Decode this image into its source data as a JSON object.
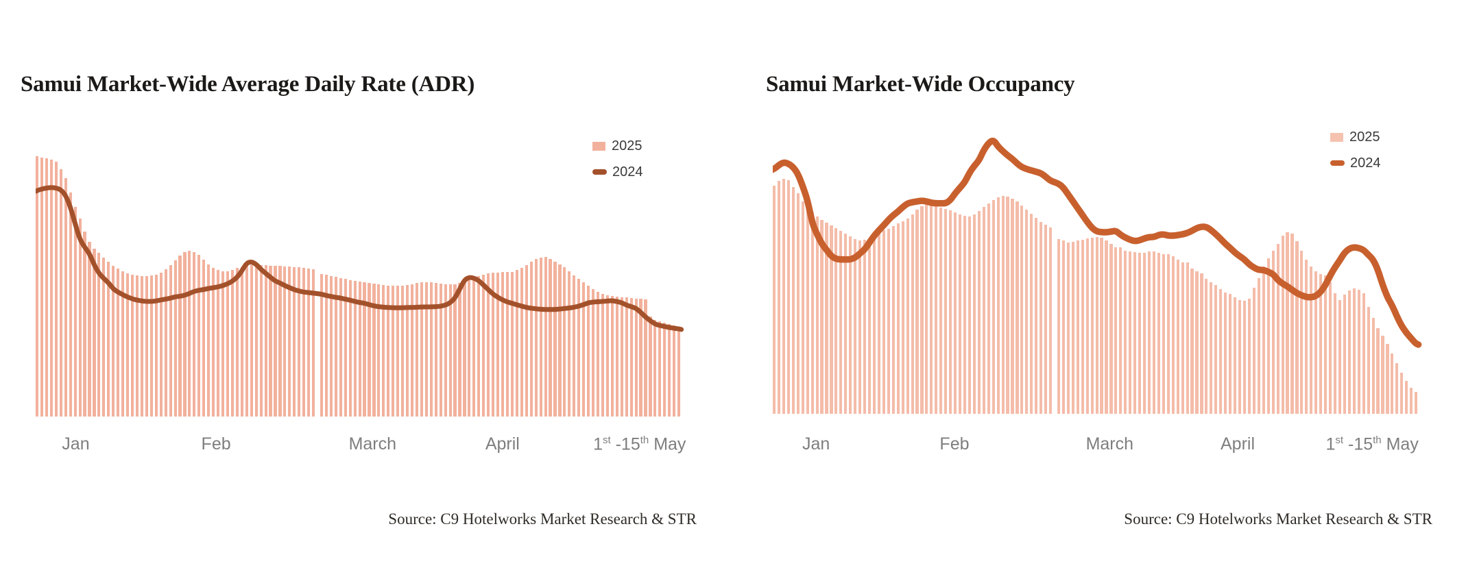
{
  "page": {
    "background": "#ffffff"
  },
  "source_label": "Source: C9 Hotelworks Market Research & STR",
  "charts": [
    {
      "id": "adr",
      "title": "Samui Market-Wide Average Daily Rate (ADR)",
      "legend": [
        {
          "label": "2025",
          "swatch": "bar",
          "color": "#F2B19C"
        },
        {
          "label": "2024",
          "swatch": "line",
          "color": "#A3512B"
        }
      ],
      "x_axis": {
        "labels": [
          {
            "text": "Jan"
          },
          {
            "text": "Feb"
          },
          {
            "text": "March"
          },
          {
            "text": "April"
          },
          {
            "text": "1st -15th May",
            "parts": {
              "a": "1",
              "sup_a": "st",
              "b": " -15",
              "sup_b": "th",
              "c": " May"
            }
          }
        ]
      },
      "source": "Source: C9 Hotelworks Market Research & STR",
      "chart_data": {
        "type": "bar+line",
        "x_unit": "daily, Jan 1 - May 15 (135 days)",
        "categories_months": [
          "Jan",
          "Feb",
          "March",
          "April",
          "1st-15th May"
        ],
        "ylabel": "",
        "value_scale": "relative height 0-100 (no y-axis shown in figure)",
        "month_gap_after_day_index": 58,
        "legend_position": "top-right",
        "grid": false,
        "series": [
          {
            "name": "2025",
            "type": "bar",
            "color": "#F2B19C",
            "values": [
              100,
              99.6,
              99.2,
              98.7,
              97.9,
              95,
              91.5,
              86,
              80.5,
              76,
              71,
              67,
              64.5,
              62.8,
              61,
              59.5,
              58,
              56.8,
              55.8,
              55,
              54.4,
              54.1,
              54,
              54,
              54.2,
              54.6,
              55.4,
              56.6,
              58.2,
              60,
              61.8,
              63.2,
              63.6,
              63.2,
              62,
              60.3,
              58.5,
              57.2,
              56.3,
              55.8,
              55.9,
              56.4,
              57,
              57.5,
              57.9,
              58.1,
              58.2,
              58.2,
              58.1,
              58,
              57.9,
              57.8,
              57.7,
              57.6,
              57.5,
              57.4,
              57.2,
              56.9,
              56.5,
              54.7,
              54.4,
              54,
              53.6,
              53.2,
              52.8,
              52.4,
              52.1,
              51.8,
              51.5,
              51.2,
              51,
              50.8,
              50.6,
              50.4,
              50.3,
              50.2,
              50.3,
              50.5,
              50.8,
              51.2,
              51.5,
              51.6,
              51.5,
              51.3,
              51.1,
              50.9,
              50.8,
              50.9,
              51.2,
              51.8,
              52.5,
              53.2,
              53.9,
              54.5,
              54.9,
              55.2,
              55.4,
              55.5,
              55.5,
              55.6,
              56.2,
              57.1,
              58.3,
              59.5,
              60.5,
              61.1,
              61.3,
              60.6,
              59.5,
              58.4,
              57.3,
              55.8,
              54.2,
              53,
              51.6,
              50.3,
              48.9,
              47.8,
              47.1,
              46.5,
              46.2,
              46,
              45.9,
              45.7,
              45.6,
              45.4,
              45.2,
              45,
              38.5,
              37.1,
              36.5,
              36,
              35.5,
              35,
              34.5
            ]
          },
          {
            "name": "2024",
            "type": "line",
            "color": "#A3512B",
            "values": [
              86.8,
              87.4,
              87.8,
              88,
              87.8,
              87.1,
              85,
              80.5,
              74,
              68,
              65,
              62.6,
              58.2,
              55,
              53,
              51.4,
              49,
              47.8,
              46.8,
              45.9,
              45.2,
              44.7,
              44.4,
              44.2,
              44.2,
              44.4,
              44.8,
              45.1,
              45.5,
              46,
              46.2,
              46.6,
              47.3,
              48.1,
              48.5,
              48.8,
              49.2,
              49.5,
              49.8,
              50.3,
              51,
              52,
              53.5,
              56,
              59,
              59.5,
              58.5,
              56.5,
              55,
              53.5,
              52,
              51.3,
              50.3,
              49.5,
              48.7,
              48.2,
              47.8,
              47.6,
              47.4,
              47,
              46.5,
              46.1,
              45.8,
              45.5,
              45.1,
              44.7,
              44.2,
              43.8,
              43.5,
              43,
              42.5,
              42.2,
              42,
              41.9,
              41.8,
              41.8,
              41.8,
              41.9,
              41.9,
              42,
              42.1,
              42.1,
              42.1,
              42.2,
              42.4,
              42.8,
              43.7,
              45.5,
              49,
              52.5,
              53.5,
              53.2,
              52.2,
              50.5,
              48.7,
              47,
              45.8,
              44.8,
              44,
              43.5,
              42.9,
              42.4,
              41.9,
              41.6,
              41.4,
              41.2,
              41.1,
              41.1,
              41.1,
              41.3,
              41.5,
              41.7,
              42,
              42.4,
              43,
              43.7,
              44,
              44.1,
              44.2,
              44.4,
              44.5,
              44.2,
              43.7,
              42.8,
              42.2,
              41.6,
              40,
              38.2,
              36.8,
              35.5,
              35,
              34.6,
              34.2,
              33.9,
              33.7
            ]
          }
        ]
      }
    },
    {
      "id": "occupancy",
      "title": "Samui Market-Wide Occupancy",
      "legend": [
        {
          "label": "2025",
          "swatch": "bar",
          "color": "#F5C2B0"
        },
        {
          "label": "2024",
          "swatch": "line",
          "color": "#C8602E"
        }
      ],
      "x_axis": {
        "labels": [
          {
            "text": "Jan"
          },
          {
            "text": "Feb"
          },
          {
            "text": "March"
          },
          {
            "text": "April"
          },
          {
            "text": "1st -15th May",
            "parts": {
              "a": "1",
              "sup_a": "st",
              "b": " -15",
              "sup_b": "th",
              "c": " May"
            }
          }
        ]
      },
      "source": "Source: C9 Hotelworks Market Research & STR",
      "chart_data": {
        "type": "bar+line",
        "x_unit": "daily, Jan 1 - May 15 (135 days)",
        "categories_months": [
          "Jan",
          "Feb",
          "March",
          "April",
          "1st-15th May"
        ],
        "ylabel": "",
        "value_scale": "relative height 0-100 (no y-axis shown in figure; plausibly occupancy %)",
        "month_gap_after_day_index": 58,
        "legend_position": "top-right",
        "grid": false,
        "series": [
          {
            "name": "2025",
            "type": "bar",
            "color": "#F4BCA9",
            "values": [
              83.3,
              85,
              85.8,
              85.2,
              82.8,
              80.5,
              77.5,
              75.8,
              73.5,
              72,
              70.8,
              69.8,
              68.8,
              67.8,
              66.8,
              65.8,
              64.8,
              63.8,
              63.2,
              63.4,
              63.8,
              64.8,
              66,
              67,
              67.5,
              68.5,
              69.5,
              70.3,
              71.3,
              72.8,
              74.5,
              75.8,
              76.8,
              76.3,
              75.8,
              75.2,
              74.8,
              74.3,
              73.5,
              72.8,
              72.2,
              72,
              72.8,
              74,
              75.5,
              76.8,
              78,
              79,
              79.5,
              79.3,
              78.5,
              77.5,
              76,
              74.5,
              73,
              71.5,
              70,
              69,
              68,
              63.8,
              63.2,
              62.5,
              62.8,
              63.2,
              63.6,
              64,
              64.3,
              64.5,
              64.2,
              63.3,
              62,
              60.8,
              60.8,
              59.5,
              59.3,
              59,
              58.8,
              58.8,
              59.3,
              59.3,
              58.8,
              58.3,
              58.3,
              57.5,
              56.3,
              55.3,
              55.3,
              53,
              52,
              51.3,
              49.3,
              48,
              47,
              45.5,
              44.3,
              43.8,
              42.5,
              41.5,
              41.3,
              42,
              46,
              49.5,
              53.8,
              56.8,
              59.5,
              62,
              65,
              66.3,
              65.8,
              63,
              59.5,
              56.3,
              53.8,
              52,
              51,
              50.5,
              48,
              44,
              41.5,
              43.5,
              45,
              45.8,
              45.3,
              44,
              39,
              35,
              31.3,
              28.5,
              25.5,
              22,
              18.5,
              15,
              12,
              9.5,
              8
            ]
          },
          {
            "name": "2024",
            "type": "line",
            "color": "#C8602E",
            "values": [
              89.3,
              90.8,
              91.8,
              91.3,
              90,
              87.5,
              83,
              78,
              69.5,
              65.5,
              62,
              59.8,
              57.5,
              56.5,
              56.3,
              56.3,
              56.3,
              57,
              58.5,
              60,
              62.5,
              65,
              67,
              68.8,
              70.8,
              72.5,
              73.8,
              75.5,
              76.8,
              77.2,
              77.5,
              77.8,
              77.5,
              77,
              76.8,
              76.8,
              76.8,
              78,
              80.5,
              82.5,
              84.5,
              88,
              90.5,
              92.5,
              96.3,
              98.8,
              100,
              97.5,
              95.8,
              94.3,
              93,
              91.3,
              90,
              89.3,
              88.8,
              88.3,
              87.8,
              86.5,
              85,
              84,
              82.5,
              80,
              77.5,
              75,
              72.5,
              70,
              67.8,
              66.5,
              66.3,
              66.2,
              66.5,
              66.8,
              65.3,
              64.3,
              63.5,
              63,
              63.3,
              64,
              64.5,
              64.5,
              65.3,
              65.5,
              65,
              65,
              65.2,
              65.5,
              66,
              66.8,
              67.8,
              68.3,
              68.2,
              67,
              65.5,
              63.8,
              62,
              60.5,
              58.8,
              57.5,
              56.3,
              54.5,
              53.3,
              52.5,
              52.5,
              51.8,
              51,
              48.8,
              47.5,
              46.5,
              45.2,
              44,
              43.2,
              42.6,
              42.5,
              43,
              44.5,
              47,
              50.5,
              53.5,
              56,
              58.8,
              60.3,
              60.8,
              60.5,
              59.8,
              58,
              56.3,
              52.5,
              47,
              42.5,
              39.5,
              35.5,
              32,
              29.5,
              27.5,
              25.5
            ]
          }
        ]
      }
    }
  ]
}
